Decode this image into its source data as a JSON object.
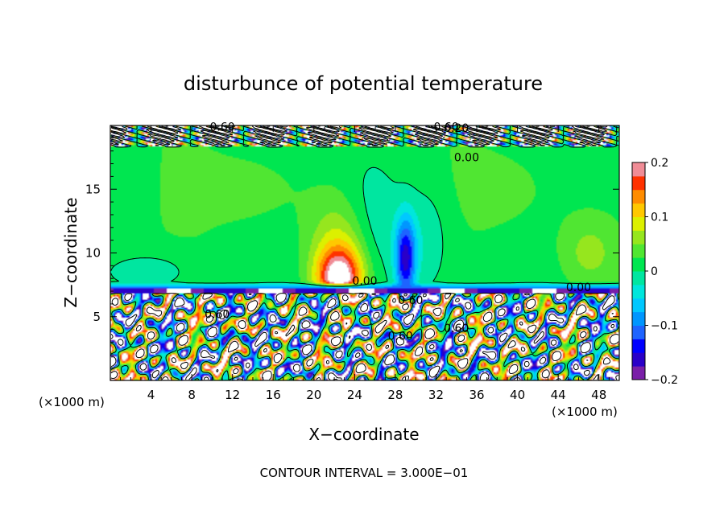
{
  "chart_data": {
    "type": "heatmap",
    "title": "disturbunce of potential temperature",
    "xlabel": "X−coordinate",
    "ylabel": "Z−coordinate",
    "x_unit_left": "(×1000 m)",
    "x_unit_right": "(×1000 m)",
    "footer": "CONTOUR INTERVAL = 3.000E−01",
    "xlim": [
      0,
      50
    ],
    "ylim": [
      0,
      20
    ],
    "x_ticks": [
      {
        "value": 4,
        "label": "4"
      },
      {
        "value": 8,
        "label": "8"
      },
      {
        "value": 12,
        "label": "12"
      },
      {
        "value": 16,
        "label": "16"
      },
      {
        "value": 20,
        "label": "20"
      },
      {
        "value": 24,
        "label": "24"
      },
      {
        "value": 28,
        "label": "28"
      },
      {
        "value": 32,
        "label": "32"
      },
      {
        "value": 36,
        "label": "36"
      },
      {
        "value": 40,
        "label": "40"
      },
      {
        "value": 44,
        "label": "44"
      },
      {
        "value": 48,
        "label": "48"
      }
    ],
    "y_ticks": [
      {
        "value": 5,
        "label": "5"
      },
      {
        "value": 10,
        "label": "10"
      },
      {
        "value": 15,
        "label": "15"
      }
    ],
    "colorbar": {
      "range": [
        -0.2,
        0.2
      ],
      "ticks": [
        {
          "value": 0.2,
          "label": "0.2"
        },
        {
          "value": 0.1,
          "label": "0.1"
        },
        {
          "value": 0,
          "label": "0"
        },
        {
          "value": -0.1,
          "label": "−0.1"
        },
        {
          "value": -0.2,
          "label": "−0.2"
        }
      ],
      "levels": [
        {
          "from": -0.2,
          "to": -0.175,
          "color": "#7a1fa8"
        },
        {
          "from": -0.175,
          "to": -0.15,
          "color": "#2a00c8"
        },
        {
          "from": -0.15,
          "to": -0.125,
          "color": "#0000ff"
        },
        {
          "from": -0.125,
          "to": -0.1,
          "color": "#1e64ff"
        },
        {
          "from": -0.1,
          "to": -0.075,
          "color": "#0096ff"
        },
        {
          "from": -0.075,
          "to": -0.05,
          "color": "#00c8ff"
        },
        {
          "from": -0.05,
          "to": -0.025,
          "color": "#00e6dc"
        },
        {
          "from": -0.025,
          "to": 0,
          "color": "#00e6a0"
        },
        {
          "from": 0,
          "to": 0.025,
          "color": "#00e650"
        },
        {
          "from": 0.025,
          "to": 0.05,
          "color": "#50e632"
        },
        {
          "from": 0.05,
          "to": 0.075,
          "color": "#96e61e"
        },
        {
          "from": 0.075,
          "to": 0.1,
          "color": "#dcf000"
        },
        {
          "from": 0.1,
          "to": 0.125,
          "color": "#ffc800"
        },
        {
          "from": 0.125,
          "to": 0.15,
          "color": "#ff8c00"
        },
        {
          "from": 0.15,
          "to": 0.175,
          "color": "#ff3200"
        },
        {
          "from": 0.175,
          "to": 0.2,
          "color": "#f08c96"
        }
      ]
    },
    "contour_interval": 0.3,
    "contour_labels": [
      {
        "x": 11.0,
        "z": 19.6,
        "label": "0.60"
      },
      {
        "x": 33.0,
        "z": 19.6,
        "label": "0.60"
      },
      {
        "x": 34.0,
        "z": 19.5,
        "label": "0.20"
      },
      {
        "x": 35.0,
        "z": 17.2,
        "label": "0.00"
      },
      {
        "x": 25.0,
        "z": 7.5,
        "label": "0.00"
      },
      {
        "x": 46.0,
        "z": 7.0,
        "label": "0.00"
      },
      {
        "x": 29.5,
        "z": 6.0,
        "label": "0.60"
      },
      {
        "x": 10.5,
        "z": 4.9,
        "label": "0.60"
      },
      {
        "x": 28.5,
        "z": 3.2,
        "label": "0.60"
      },
      {
        "x": 34.0,
        "z": 3.8,
        "label": "0.60"
      }
    ],
    "anomalies": [
      {
        "x": 22.5,
        "z": 8.0,
        "value": 0.18,
        "sx": 2.2,
        "sz": 2.2
      },
      {
        "x": 22.5,
        "z": 10.0,
        "value": 0.08,
        "sx": 3.0,
        "sz": 4.0
      },
      {
        "x": 29.0,
        "z": 9.5,
        "value": -0.16,
        "sx": 1.0,
        "sz": 3.2
      },
      {
        "x": 26.0,
        "z": 12.0,
        "value": -0.04,
        "sx": 3.0,
        "sz": 5.5
      },
      {
        "x": 31.0,
        "z": 11.0,
        "value": -0.04,
        "sx": 2.5,
        "sz": 5.0
      },
      {
        "x": 4.0,
        "z": 8.5,
        "value": -0.04,
        "sx": 4.0,
        "sz": 1.5
      },
      {
        "x": 47.0,
        "z": 10.0,
        "value": 0.05,
        "sx": 3.0,
        "sz": 3.0
      },
      {
        "x": 16.0,
        "z": 15.0,
        "value": 0.02,
        "sx": 6.0,
        "sz": 4.0
      },
      {
        "x": 40.0,
        "z": 15.0,
        "value": 0.02,
        "sx": 6.0,
        "sz": 4.0
      }
    ],
    "bands": [
      {
        "zmin": 18.4,
        "zmax": 20.0,
        "description": "tropopause damping layer, strong oscillating perturbations"
      },
      {
        "zmin": 6.8,
        "zmax": 7.2,
        "value": -0.18
      },
      {
        "zmin": 0.0,
        "zmax": 6.8,
        "description": "turbulent convective boundary layer, mixed ±0.2+ perturbations"
      }
    ]
  }
}
